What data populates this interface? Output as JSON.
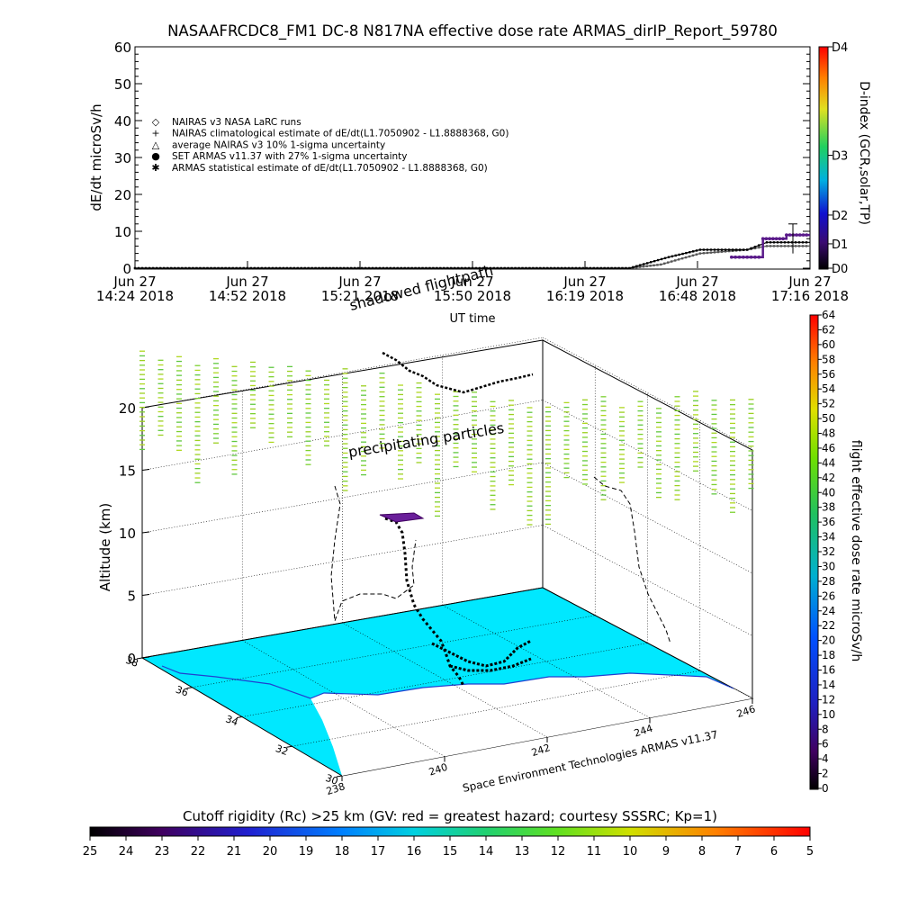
{
  "top_chart": {
    "title": "NASAAFRCDC8_FM1 DC-8   N817NA effective dose rate ARMAS_dirIP_Report_59780",
    "ylabel": "dE/dt microSv/h",
    "xlabel": "UT time",
    "yticks": [
      "0",
      "10",
      "20",
      "30",
      "40",
      "50",
      "60"
    ],
    "xticks": [
      {
        "line1": "Jun 27",
        "line2": "14:24 2018"
      },
      {
        "line1": "Jun 27",
        "line2": "14:52 2018"
      },
      {
        "line1": "Jun 27",
        "line2": "15:21 2018"
      },
      {
        "line1": "Jun 27",
        "line2": "15:50 2018"
      },
      {
        "line1": "Jun 27",
        "line2": "16:19 2018"
      },
      {
        "line1": "Jun 27",
        "line2": "16:48 2018"
      },
      {
        "line1": "Jun 27",
        "line2": "17:16 2018"
      }
    ],
    "legend": [
      {
        "symbol": "◇",
        "text": "NAIRAS v3 NASA LaRC runs"
      },
      {
        "symbol": "+",
        "text": "NAIRAS climatological estimate of dE/dt(L1.7050902 - L1.8888368, G0)"
      },
      {
        "symbol": "△",
        "text": "average NAIRAS v3 10% 1-sigma uncertainty"
      },
      {
        "symbol": "●",
        "text": "SET ARMAS v11.37 with 27% 1-sigma uncertainty",
        "color": "#2040ff"
      },
      {
        "symbol": "✱",
        "text": "ARMAS statistical estimate of dE/dt(L1.7050902 - L1.8888368, G0)"
      }
    ],
    "dindex_label": "D-index (GCR,solar,TP)",
    "dindex_ticks": [
      "D0",
      "D1",
      "D2",
      "D3",
      "D4"
    ]
  },
  "chart_data": [
    {
      "type": "line",
      "title": "NASAAFRCDC8_FM1 DC-8   N817NA effective dose rate ARMAS_dirIP_Report_59780",
      "xlabel": "UT time",
      "ylabel": "dE/dt microSv/h",
      "ylim": [
        0,
        60
      ],
      "x_range": [
        "14:24",
        "17:16"
      ],
      "series": [
        {
          "name": "NAIRAS v3 NASA LaRC runs",
          "x": [
            "14:24",
            "15:00",
            "15:30",
            "16:00",
            "16:30",
            "16:38",
            "16:48",
            "17:00",
            "17:05",
            "17:16"
          ],
          "values": [
            0,
            0,
            0,
            0,
            0,
            1,
            4,
            5,
            6,
            6
          ]
        },
        {
          "name": "ARMAS statistical estimate of dE/dt(L1.7050902 - L1.8888368, G0)",
          "x": [
            "14:24",
            "15:00",
            "15:30",
            "16:00",
            "16:30",
            "16:40",
            "16:48",
            "17:00",
            "17:05",
            "17:16"
          ],
          "values": [
            0,
            0,
            0,
            0,
            0,
            3,
            5,
            5,
            7,
            7
          ]
        },
        {
          "name": "SET ARMAS v11.37 with 27% 1-sigma uncertainty",
          "x": [
            "16:56",
            "17:00",
            "17:04",
            "17:10",
            "17:16"
          ],
          "values": [
            3,
            3,
            8,
            9,
            9
          ]
        }
      ]
    }
  ],
  "scene": {
    "altitude_label": "Altitude (km)",
    "z_ticks": [
      "0",
      "5",
      "10",
      "15",
      "20"
    ],
    "lat_ticks": [
      "30",
      "32",
      "34",
      "36",
      "38"
    ],
    "lon_ticks": [
      "238",
      "240",
      "242",
      "244",
      "246"
    ],
    "annotation_precip": "precipitating particles",
    "annotation_shadow": "shadowed flightpath",
    "credit": "Space Environment Technologies ARMAS v11.37"
  },
  "right_colorbar": {
    "label": "flight effective dose rate microSv/h",
    "ticks": [
      "0",
      "2",
      "4",
      "6",
      "8",
      "10",
      "12",
      "14",
      "16",
      "18",
      "20",
      "22",
      "24",
      "26",
      "28",
      "30",
      "32",
      "34",
      "36",
      "38",
      "40",
      "42",
      "44",
      "46",
      "48",
      "50",
      "52",
      "54",
      "56",
      "58",
      "60",
      "62",
      "64"
    ]
  },
  "bottom_colorbar": {
    "title": "Cutoff rigidity (Rc) >25 km (GV: red = greatest hazard; courtesy SSSRC; Kp=1)",
    "ticks": [
      "25",
      "24",
      "23",
      "22",
      "21",
      "20",
      "19",
      "18",
      "17",
      "16",
      "15",
      "14",
      "13",
      "12",
      "11",
      "10",
      "9",
      "8",
      "7",
      "6",
      "5"
    ]
  }
}
